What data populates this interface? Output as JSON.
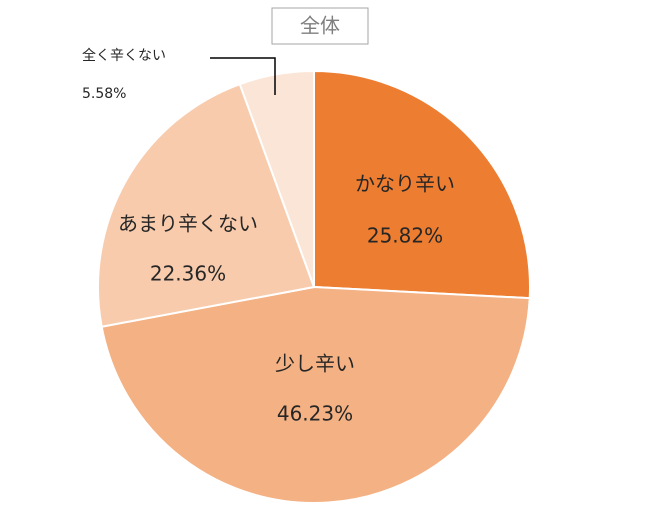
{
  "chart_data": {
    "type": "pie",
    "title": "全体",
    "categories": [
      "かなり辛い",
      "少し辛い",
      "あまり辛くない",
      "全く辛くない"
    ],
    "values": [
      25.82,
      46.23,
      22.36,
      5.58
    ],
    "value_labels": [
      "25.82%",
      "46.23%",
      "22.36%",
      "5.58%"
    ],
    "colors": [
      "#ed7d31",
      "#f4b183",
      "#f8cbad",
      "#fbe5d6"
    ]
  }
}
